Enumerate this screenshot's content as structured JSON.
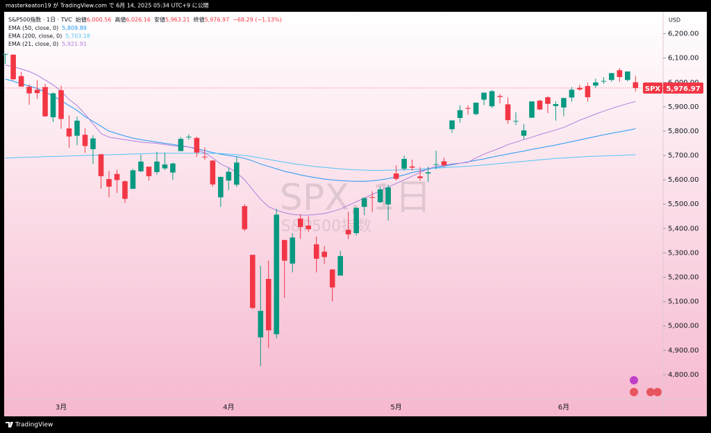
{
  "header": {
    "publisher": "masterkeaton19 が TradingView.com で 6月 14, 2025 05:34 UTC+9 に公開",
    "brand": "TradingView"
  },
  "chart_data": {
    "type": "candlestick",
    "title": "S&P500指数 · 1日 · TVC",
    "ohlc_labels": [
      {
        "name": "始値",
        "value": "6,000.56"
      },
      {
        "name": "高値",
        "value": "6,026.16"
      },
      {
        "name": "安値",
        "value": "5,963.21"
      },
      {
        "name": "終値",
        "value": "5,976.97"
      }
    ],
    "change_label": "−68.29 (−1.13%)",
    "watermark": "SPX, 1日",
    "watermark_sub": "S&P500指数",
    "currency": "USD",
    "symbol": "SPX",
    "last_price_label": "5,976.97",
    "up_color": "#089981",
    "down_color": "#f23645",
    "categories": [
      null,
      null,
      null,
      null,
      null,
      null,
      null,
      "3月",
      null,
      null,
      null,
      null,
      null,
      null,
      null,
      null,
      null,
      null,
      null,
      null,
      null,
      null,
      null,
      null,
      null,
      null,
      null,
      null,
      "4月",
      null,
      null,
      null,
      null,
      null,
      null,
      null,
      null,
      null,
      null,
      null,
      null,
      null,
      null,
      null,
      null,
      null,
      null,
      null,
      null,
      "5月",
      null,
      null,
      null,
      null,
      null,
      null,
      null,
      null,
      null,
      null,
      null,
      null,
      null,
      null,
      null,
      null,
      null,
      null,
      null,
      null,
      "6月",
      null,
      null,
      null,
      null,
      null,
      null,
      null,
      null,
      null
    ],
    "open": [
      6117,
      6114,
      6026,
      5982,
      5970,
      5981,
      5857,
      5968,
      5811,
      5781,
      5785,
      5726,
      5705,
      5603,
      5624,
      5594,
      5563,
      5635,
      5654,
      5632,
      5647,
      5630,
      5718,
      5775,
      5772,
      5695,
      5679,
      5528,
      5597,
      5580,
      5492,
      5292,
      4953,
      5193,
      4966,
      5353,
      5256,
      5441,
      5412,
      5335,
      5305,
      5232,
      5207,
      5395,
      5381,
      5489,
      5529,
      5508,
      5499,
      5626,
      5645,
      5655,
      5614,
      5626,
      5663,
      5676,
      5808,
      5854,
      5895,
      5870,
      5929,
      5902,
      5944,
      5910,
      5842,
      5781,
      5855,
      5925,
      5939,
      5903,
      5897,
      5938,
      5978,
      5985,
      5987,
      6004,
      6010,
      6050,
      6010,
      6000.56
    ],
    "high": [
      6118,
      6115,
      6044,
      5992,
      6009,
      5994,
      5959,
      5986,
      5865,
      5860,
      5812,
      5783,
      5706,
      5636,
      5642,
      5598,
      5645,
      5703,
      5654,
      5715,
      5711,
      5670,
      5775,
      5786,
      5777,
      5733,
      5680,
      5613,
      5650,
      5695,
      5500,
      5292,
      5247,
      5268,
      5481,
      5353,
      5381,
      5459,
      5450,
      5367,
      5328,
      5233,
      5309,
      5469,
      5486,
      5528,
      5553,
      5572,
      5581,
      5659,
      5700,
      5683,
      5652,
      5654,
      5720,
      5691,
      5844,
      5906,
      5906,
      5917,
      5958,
      5968,
      5953,
      5938,
      5878,
      5829,
      5922,
      5929,
      5943,
      5922,
      5937,
      5981,
      5990,
      5999,
      6016,
      6022,
      6039,
      6059,
      6045,
      6026.16
    ],
    "low": [
      6076,
      6008,
      5982,
      5908,
      5932,
      5858,
      5837,
      5810,
      5732,
      5742,
      5711,
      5666,
      5564,
      5528,
      5546,
      5505,
      5563,
      5632,
      5597,
      5622,
      5640,
      5600,
      5718,
      5764,
      5694,
      5682,
      5572,
      5489,
      5558,
      5571,
      5390,
      5069,
      4835,
      4910,
      4949,
      5115,
      5220,
      5358,
      5386,
      5220,
      5255,
      5101,
      5207,
      5357,
      5371,
      5455,
      5468,
      5505,
      5433,
      5597,
      5639,
      5638,
      5597,
      5591,
      5644,
      5652,
      5793,
      5835,
      5868,
      5865,
      5907,
      5895,
      5914,
      5830,
      5825,
      5767,
      5855,
      5886,
      5874,
      5843,
      5861,
      5921,
      5966,
      5921,
      5978,
      5994,
      6003,
      6003,
      6004,
      5963.21
    ],
    "close": [
      6117,
      6013,
      5983,
      5955,
      5956,
      5861,
      5955,
      5850,
      5778,
      5843,
      5739,
      5770,
      5615,
      5572,
      5599,
      5522,
      5639,
      5675,
      5615,
      5675,
      5663,
      5667,
      5768,
      5777,
      5712,
      5693,
      5581,
      5612,
      5633,
      5671,
      5397,
      5074,
      5062,
      4982,
      5457,
      5268,
      5363,
      5406,
      5397,
      5276,
      5283,
      5158,
      5287,
      5376,
      5485,
      5525,
      5528,
      5561,
      5569,
      5604,
      5686,
      5650,
      5607,
      5631,
      5664,
      5660,
      5844,
      5886,
      5892,
      5917,
      5958,
      5964,
      5940,
      5845,
      5842,
      5803,
      5922,
      5889,
      5912,
      5911,
      5936,
      5970,
      5971,
      5939,
      6000,
      6006,
      6038,
      6022,
      6045,
      5976.97
    ],
    "indicators": [
      {
        "name": "EMA (50, close, 0)",
        "value_label": "5,809.89",
        "color": "#2196f3",
        "values": [
          6014,
          6005,
          5995,
          5985,
          5975,
          5960,
          5945,
          5925,
          5905,
          5885,
          5860,
          5840,
          5820,
          5800,
          5790,
          5780,
          5771,
          5765,
          5760,
          5755,
          5750,
          5745,
          5740,
          5735,
          5728,
          5720,
          5712,
          5705,
          5700,
          5695,
          5688,
          5678,
          5665,
          5655,
          5645,
          5635,
          5628,
          5620,
          5614,
          5608,
          5603,
          5600,
          5597,
          5595,
          5594,
          5594,
          5596,
          5600,
          5605,
          5612,
          5620,
          5630,
          5637,
          5644,
          5650,
          5656,
          5662,
          5668,
          5674,
          5680,
          5686,
          5693,
          5700,
          5706,
          5712,
          5718,
          5725,
          5731,
          5737,
          5743,
          5750,
          5757,
          5764,
          5771,
          5778,
          5785,
          5791,
          5797,
          5803,
          5810
        ]
      },
      {
        "name": "EMA (200, close, 0)",
        "value_label": "5,703.18",
        "color": "#4fc3f7",
        "values": [
          5689,
          5691,
          5692,
          5693,
          5694,
          5695,
          5696,
          5697,
          5698,
          5699,
          5700,
          5701,
          5702,
          5703,
          5704,
          5705,
          5706,
          5707,
          5708,
          5709,
          5709,
          5709,
          5709,
          5709,
          5709,
          5709,
          5709,
          5708,
          5706,
          5703,
          5700,
          5695,
          5690,
          5684,
          5678,
          5672,
          5667,
          5662,
          5658,
          5654,
          5651,
          5648,
          5645,
          5643,
          5641,
          5640,
          5639,
          5639,
          5640,
          5640,
          5641,
          5642,
          5644,
          5646,
          5648,
          5650,
          5652,
          5654,
          5656,
          5658,
          5661,
          5664,
          5667,
          5670,
          5673,
          5676,
          5679,
          5682,
          5685,
          5688,
          5690,
          5692,
          5694,
          5696,
          5697,
          5698,
          5699,
          5700,
          5702,
          5703
        ]
      },
      {
        "name": "EMA (21, close, 0)",
        "value_label": "5,921.91",
        "color": "#ab7fdc",
        "values": [
          6071,
          6065,
          6055,
          6045,
          6030,
          6010,
          5990,
          5965,
          5930,
          5905,
          5870,
          5830,
          5790,
          5775,
          5770,
          5765,
          5760,
          5755,
          5752,
          5750,
          5745,
          5740,
          5738,
          5735,
          5725,
          5710,
          5690,
          5665,
          5650,
          5630,
          5600,
          5560,
          5520,
          5490,
          5475,
          5465,
          5458,
          5455,
          5455,
          5458,
          5462,
          5470,
          5480,
          5495,
          5510,
          5525,
          5540,
          5555,
          5570,
          5585,
          5600,
          5615,
          5630,
          5645,
          5655,
          5660,
          5665,
          5668,
          5672,
          5690,
          5705,
          5718,
          5730,
          5745,
          5755,
          5765,
          5775,
          5786,
          5795,
          5805,
          5815,
          5830,
          5845,
          5857,
          5870,
          5882,
          5893,
          5903,
          5913,
          5922
        ]
      }
    ],
    "ylim": [
      4700,
      6290
    ],
    "yticks": [
      {
        "value": 4800,
        "label": "4,800.00"
      },
      {
        "value": 4900,
        "label": "4,900.00"
      },
      {
        "value": 5000,
        "label": "5,000.00"
      },
      {
        "value": 5100,
        "label": "5,100.00"
      },
      {
        "value": 5200,
        "label": "5,200.00"
      },
      {
        "value": 5300,
        "label": "5,300.00"
      },
      {
        "value": 5400,
        "label": "5,400.00"
      },
      {
        "value": 5500,
        "label": "5,500.00"
      },
      {
        "value": 5600,
        "label": "5,600.00"
      },
      {
        "value": 5700,
        "label": "5,700.00"
      },
      {
        "value": 5800,
        "label": "5,800.00"
      },
      {
        "value": 5900,
        "label": "5,900.00"
      },
      {
        "value": 6000,
        "label": "6,000.00"
      },
      {
        "value": 6100,
        "label": "6,100.00"
      },
      {
        "value": 6200,
        "label": "6,200.00"
      }
    ],
    "grid": false
  }
}
